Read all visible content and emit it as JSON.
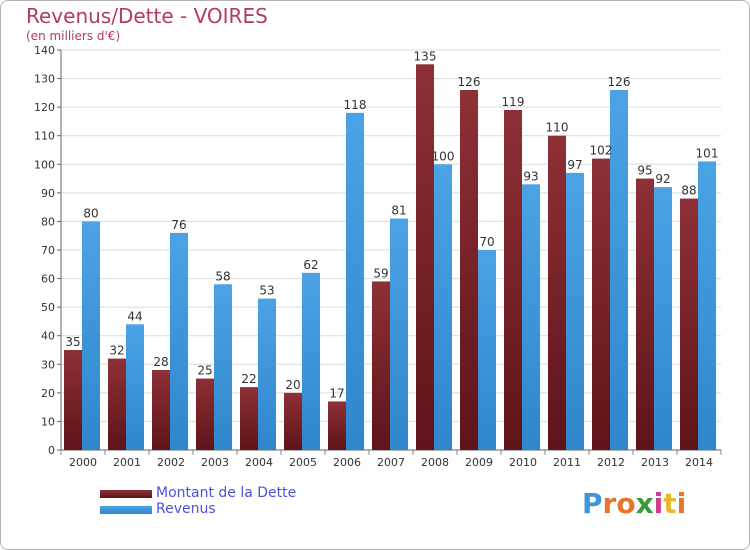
{
  "header": {
    "title": "Revenus/Dette - VOIRES",
    "subtitle": "(en milliers d'€)"
  },
  "colors": {
    "dette": "#7a2228",
    "revenus": "#3d95db",
    "axis_text": "#333333",
    "title": "#b4386a",
    "legend_text": "#4c52d8"
  },
  "chart_data": {
    "type": "bar",
    "title": "Revenus/Dette - VOIRES",
    "ylabel": "(en milliers d'€)",
    "xlabel": "",
    "ylim": [
      0,
      140
    ],
    "yticks": [
      0,
      10,
      20,
      30,
      40,
      50,
      60,
      70,
      80,
      90,
      100,
      110,
      120,
      130,
      140
    ],
    "grid": true,
    "legend_position": "bottom-left",
    "categories": [
      "2000",
      "2001",
      "2002",
      "2003",
      "2004",
      "2005",
      "2006",
      "2007",
      "2008",
      "2009",
      "2010",
      "2011",
      "2012",
      "2013",
      "2014"
    ],
    "series": [
      {
        "name": "Montant de la Dette",
        "values": [
          35,
          32,
          28,
          25,
          22,
          20,
          17,
          59,
          135,
          126,
          119,
          110,
          102,
          95,
          88
        ]
      },
      {
        "name": "Revenus",
        "values": [
          80,
          44,
          76,
          58,
          53,
          62,
          118,
          81,
          100,
          70,
          93,
          97,
          126,
          92,
          101
        ]
      }
    ]
  },
  "legend": {
    "items": [
      {
        "label": "Montant de la Dette"
      },
      {
        "label": "Revenus"
      }
    ]
  },
  "logo": {
    "text": "Proxiti",
    "letter_colors": [
      "#3d95db",
      "#e8732c",
      "#e8732c",
      "#3a9a3a",
      "#d23c8c",
      "#e8b82c",
      "#e8732c"
    ]
  }
}
